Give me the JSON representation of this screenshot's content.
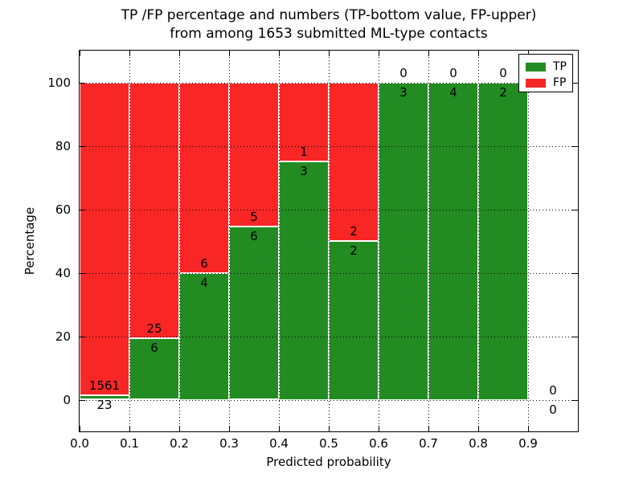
{
  "title": {
    "line1": "TP /FP percentage and numbers (TP-bottom value, FP-upper)",
    "line2": "from among 1653 submitted ML-type contacts"
  },
  "chart_data": {
    "type": "bar",
    "stacked": true,
    "unit": "percent-of-bin",
    "title": "TP /FP percentage and numbers (TP-bottom value, FP-upper)\nfrom among 1653 submitted ML-type contacts",
    "xlabel": "Predicted probability",
    "ylabel": "Percentage",
    "xlim": [
      0.0,
      1.0
    ],
    "ylim": [
      -10,
      110
    ],
    "grid": "dotted",
    "x_ticks": [
      {
        "v": 0.0,
        "label": "0.0"
      },
      {
        "v": 0.1,
        "label": "0.1"
      },
      {
        "v": 0.2,
        "label": "0.2"
      },
      {
        "v": 0.3,
        "label": "0.3"
      },
      {
        "v": 0.4,
        "label": "0.4"
      },
      {
        "v": 0.5,
        "label": "0.5"
      },
      {
        "v": 0.6,
        "label": "0.6"
      },
      {
        "v": 0.7,
        "label": "0.7"
      },
      {
        "v": 0.8,
        "label": "0.8"
      },
      {
        "v": 0.9,
        "label": "0.9"
      }
    ],
    "y_ticks": [
      {
        "v": 0,
        "label": "0"
      },
      {
        "v": 20,
        "label": "20"
      },
      {
        "v": 40,
        "label": "40"
      },
      {
        "v": 60,
        "label": "60"
      },
      {
        "v": 80,
        "label": "80"
      },
      {
        "v": 100,
        "label": "100"
      }
    ],
    "legend": {
      "position": "upper right",
      "entries": [
        {
          "name": "TP",
          "color": "#228b22"
        },
        {
          "name": "FP",
          "color": "#f92626"
        }
      ]
    },
    "colors": {
      "tp": "#228b22",
      "fp": "#f92626",
      "axis": "#000000",
      "bar_edge": "#ffffff"
    },
    "bins": [
      {
        "range": [
          0.0,
          0.1
        ],
        "tp": 23,
        "fp": 1561
      },
      {
        "range": [
          0.1,
          0.2
        ],
        "tp": 6,
        "fp": 25
      },
      {
        "range": [
          0.2,
          0.3
        ],
        "tp": 4,
        "fp": 6
      },
      {
        "range": [
          0.3,
          0.4
        ],
        "tp": 6,
        "fp": 5
      },
      {
        "range": [
          0.4,
          0.5
        ],
        "tp": 3,
        "fp": 1
      },
      {
        "range": [
          0.5,
          0.6
        ],
        "tp": 2,
        "fp": 2
      },
      {
        "range": [
          0.6,
          0.7
        ],
        "tp": 3,
        "fp": 0
      },
      {
        "range": [
          0.7,
          0.8
        ],
        "tp": 4,
        "fp": 0
      },
      {
        "range": [
          0.8,
          0.9
        ],
        "tp": 2,
        "fp": 0
      },
      {
        "range": [
          0.9,
          1.0
        ],
        "tp": 0,
        "fp": 0
      }
    ]
  }
}
